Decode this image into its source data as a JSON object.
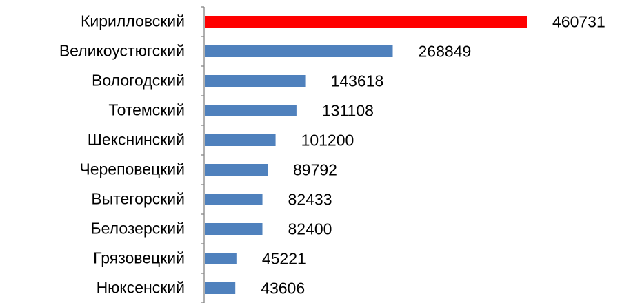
{
  "chart_data": {
    "type": "bar",
    "orientation": "horizontal",
    "categories": [
      "Кирилловский",
      "Великоустюгский",
      "Вологодский",
      "Тотемский",
      "Шекснинский",
      "Череповецкий",
      "Вытегорский",
      "Белозерский",
      "Грязовецкий",
      "Нюксенский"
    ],
    "values": [
      460731,
      268849,
      143618,
      131108,
      101200,
      89792,
      82433,
      82400,
      45221,
      43606
    ],
    "colors": [
      "#ff0000",
      "#4f81bd",
      "#4f81bd",
      "#4f81bd",
      "#4f81bd",
      "#4f81bd",
      "#4f81bd",
      "#4f81bd",
      "#4f81bd",
      "#4f81bd"
    ]
  }
}
